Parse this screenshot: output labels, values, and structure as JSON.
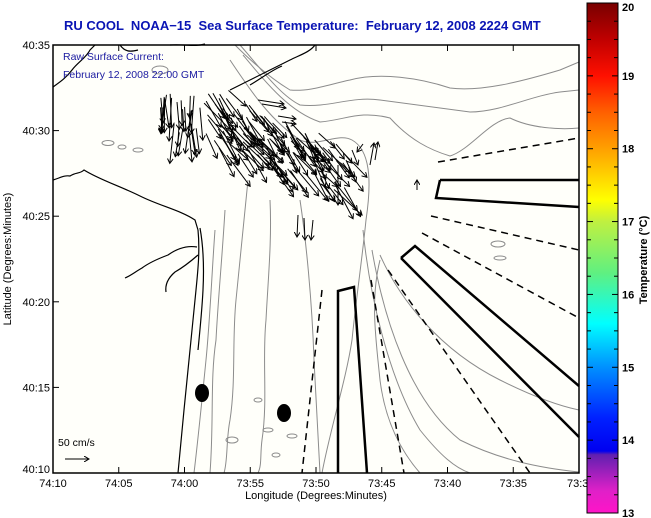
{
  "title": "RU COOL  NOAA−15  Sea Surface Temperature:  February 12, 2008 2224 GMT",
  "overlay": {
    "line1": "Raw Surface Current:",
    "line2": "February 12, 2008 22:00 GMT"
  },
  "scale_arrow": {
    "label": "50 cm/s",
    "icon": "right-arrow-icon"
  },
  "x_axis": {
    "label": "Longitude (Degrees:Minutes)",
    "ticks": [
      "74:10",
      "74:05",
      "74:00",
      "73:55",
      "73:50",
      "73:45",
      "73:40",
      "73:35",
      "73:3"
    ]
  },
  "y_axis": {
    "label": "Latitude (Degrees:Minutes)",
    "ticks": [
      "40:35",
      "40:30",
      "40:25",
      "40:20",
      "40:15",
      "40:10"
    ]
  },
  "colorbar": {
    "label": "Temperature (°C)",
    "min": 13,
    "max": 20,
    "ticks": [
      "20",
      "19",
      "18",
      "17",
      "16",
      "15",
      "14",
      "13"
    ],
    "stops": [
      {
        "value": 13.0,
        "color": "#ff14c8"
      },
      {
        "value": 13.3,
        "color": "#e020c8"
      },
      {
        "value": 13.8,
        "color": "#6020b0"
      },
      {
        "value": 13.85,
        "color": "#0000f0"
      },
      {
        "value": 14.3,
        "color": "#0020ff"
      },
      {
        "value": 15.0,
        "color": "#0090ff"
      },
      {
        "value": 15.6,
        "color": "#00ffff"
      },
      {
        "value": 16.3,
        "color": "#60f080"
      },
      {
        "value": 17.0,
        "color": "#c0f040"
      },
      {
        "value": 17.3,
        "color": "#ffff00"
      },
      {
        "value": 18.0,
        "color": "#ffa000"
      },
      {
        "value": 18.5,
        "color": "#ff6000"
      },
      {
        "value": 19.0,
        "color": "#ff1000"
      },
      {
        "value": 19.5,
        "color": "#c00000"
      },
      {
        "value": 20.0,
        "color": "#780000"
      }
    ]
  },
  "colors": {
    "title": "#0a14b4",
    "overlay_text": "#1a1aa0",
    "contour": "#8c8c8c",
    "coast": "#000000",
    "background": "#fffffa"
  }
}
